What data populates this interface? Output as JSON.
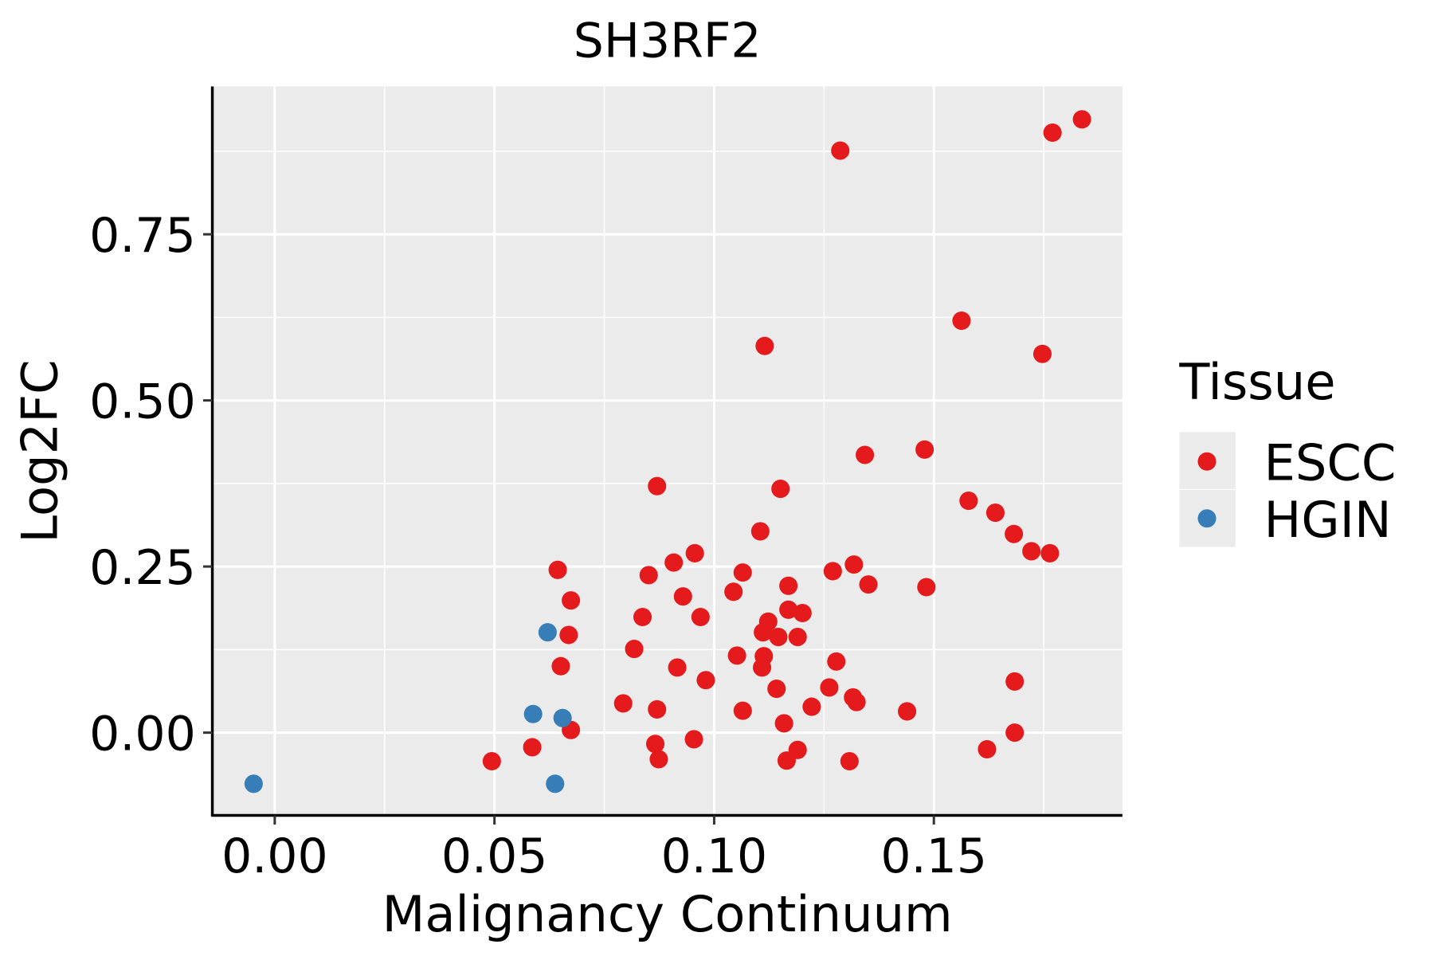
{
  "chart_data": {
    "type": "scatter",
    "title": "SH3RF2",
    "xlabel": "Malignancy Continuum",
    "ylabel": "Log2FC",
    "xlim": [
      -0.0142,
      0.1929
    ],
    "ylim": [
      -0.1245,
      0.9726
    ],
    "xticks": [
      0,
      0.05,
      0.1,
      0.15
    ],
    "xtick_labels": [
      "0.00",
      "0.05",
      "0.10",
      "0.15"
    ],
    "yticks": [
      0,
      0.25,
      0.5,
      0.75
    ],
    "ytick_labels": [
      "0.00",
      "0.25",
      "0.50",
      "0.75"
    ],
    "grid": true,
    "legend": {
      "title": "Tissue",
      "position": "right"
    },
    "series": [
      {
        "name": "ESCC",
        "color": "#E41A1C",
        "points": [
          [
            0.1837,
            0.923
          ],
          [
            0.177,
            0.903
          ],
          [
            0.1287,
            0.876
          ],
          [
            0.1563,
            0.62
          ],
          [
            0.1747,
            0.57
          ],
          [
            0.1115,
            0.582
          ],
          [
            0.1343,
            0.418
          ],
          [
            0.1479,
            0.426
          ],
          [
            0.087,
            0.371
          ],
          [
            0.1151,
            0.367
          ],
          [
            0.1579,
            0.349
          ],
          [
            0.164,
            0.331
          ],
          [
            0.1105,
            0.303
          ],
          [
            0.1682,
            0.299
          ],
          [
            0.1722,
            0.273
          ],
          [
            0.1764,
            0.27
          ],
          [
            0.0956,
            0.27
          ],
          [
            0.0908,
            0.256
          ],
          [
            0.1318,
            0.253
          ],
          [
            0.0644,
            0.245
          ],
          [
            0.0851,
            0.237
          ],
          [
            0.1065,
            0.241
          ],
          [
            0.127,
            0.243
          ],
          [
            0.1169,
            0.221
          ],
          [
            0.1351,
            0.223
          ],
          [
            0.1483,
            0.219
          ],
          [
            0.1044,
            0.212
          ],
          [
            0.0929,
            0.205
          ],
          [
            0.0674,
            0.199
          ],
          [
            0.0837,
            0.174
          ],
          [
            0.0969,
            0.174
          ],
          [
            0.1169,
            0.185
          ],
          [
            0.1201,
            0.18
          ],
          [
            0.1123,
            0.167
          ],
          [
            0.1111,
            0.151
          ],
          [
            0.1146,
            0.144
          ],
          [
            0.119,
            0.144
          ],
          [
            0.0669,
            0.147
          ],
          [
            0.0818,
            0.126
          ],
          [
            0.1052,
            0.116
          ],
          [
            0.1113,
            0.115
          ],
          [
            0.1278,
            0.107
          ],
          [
            0.0651,
            0.1
          ],
          [
            0.0916,
            0.098
          ],
          [
            0.1109,
            0.098
          ],
          [
            0.0981,
            0.079
          ],
          [
            0.1684,
            0.077
          ],
          [
            0.1142,
            0.066
          ],
          [
            0.1262,
            0.068
          ],
          [
            0.1316,
            0.053
          ],
          [
            0.1324,
            0.046
          ],
          [
            0.0793,
            0.044
          ],
          [
            0.1222,
            0.039
          ],
          [
            0.087,
            0.035
          ],
          [
            0.1065,
            0.033
          ],
          [
            0.1439,
            0.032
          ],
          [
            0.1159,
            0.014
          ],
          [
            0.0674,
            0.004
          ],
          [
            0.1684,
            0.0
          ],
          [
            0.0954,
            -0.01
          ],
          [
            0.0866,
            -0.017
          ],
          [
            0.0586,
            -0.022
          ],
          [
            0.1621,
            -0.025
          ],
          [
            0.119,
            -0.026
          ],
          [
            0.0494,
            -0.043
          ],
          [
            0.0874,
            -0.04
          ],
          [
            0.1165,
            -0.042
          ],
          [
            0.1308,
            -0.043
          ]
        ]
      },
      {
        "name": "HGIN",
        "color": "#377EB8",
        "points": [
          [
            -0.0048,
            -0.077
          ],
          [
            0.0621,
            0.151
          ],
          [
            0.0588,
            0.028
          ],
          [
            0.0655,
            0.022
          ],
          [
            0.0638,
            -0.077
          ]
        ]
      }
    ]
  }
}
